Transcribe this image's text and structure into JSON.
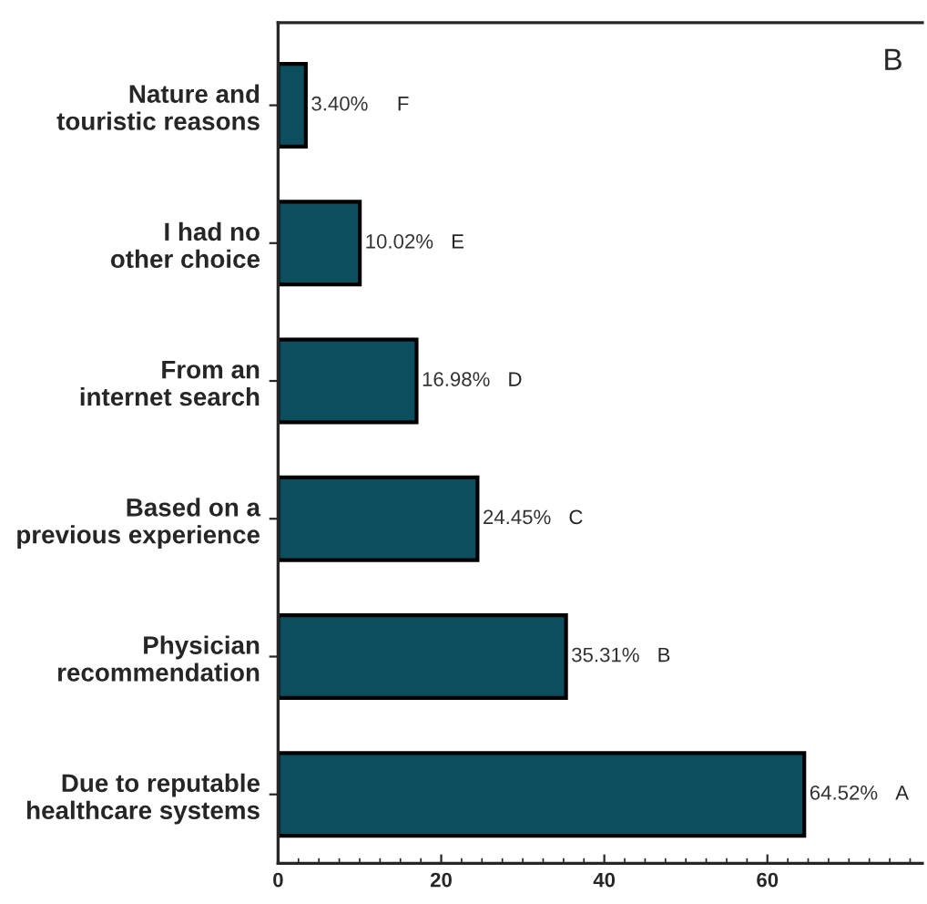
{
  "chart_data": {
    "type": "bar",
    "orientation": "horizontal",
    "categories": [
      "Nature and\ntouristic reasons",
      "I had no\nother choice",
      "From an\ninternet search",
      "Based on a\nprevious experience",
      "Physician\nrecommendation",
      "Due to reputable\nhealthcare systems"
    ],
    "values": [
      3.4,
      10.02,
      16.98,
      24.45,
      35.31,
      64.52
    ],
    "value_labels": [
      "3.40%",
      "10.02%",
      "16.98%",
      "24.45%",
      "35.31%",
      "64.52%"
    ],
    "color": "#0b4f5e",
    "xlim": [
      0,
      79
    ],
    "xticks": [
      0,
      20,
      40,
      60
    ],
    "annotations": [
      "B",
      "F",
      "E",
      "D",
      "C",
      "B",
      "A"
    ],
    "grid": false
  }
}
